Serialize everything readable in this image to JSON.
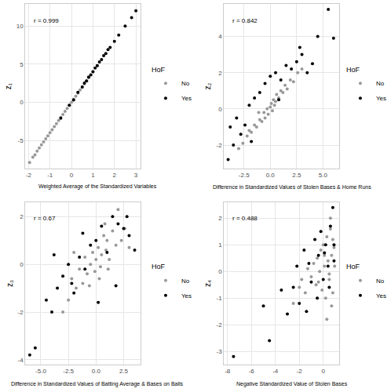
{
  "chart_data": [
    {
      "type": "scatter",
      "annotation": "r = 0.999",
      "x_label": "Weighted Average of the Standardized Variables",
      "y_label": "z₁",
      "legend_title": "HoF",
      "legend": "right",
      "grid": true,
      "xlim": [
        -2.15,
        3.2
      ],
      "ylim": [
        -8.7,
        12.9
      ],
      "xticks": [
        -2,
        -1,
        0,
        1,
        2,
        3
      ],
      "yticks": [
        -5,
        0,
        5,
        10
      ],
      "series": [
        {
          "name": "No",
          "color": "#999999",
          "marker": "circle",
          "x": [
            -1.95,
            -1.8,
            -1.7,
            -1.6,
            -1.5,
            -1.4,
            -1.3,
            -1.2,
            -1.1,
            -1.0,
            -0.9,
            -0.8,
            -0.7,
            -0.6,
            -0.5,
            -0.4,
            -0.3,
            -0.2,
            -0.1,
            0.0,
            0.1,
            0.2,
            0.3,
            0.4,
            0.5,
            0.6,
            0.7,
            0.8,
            1.0,
            1.2
          ],
          "values": [
            -7.9,
            -7.2,
            -6.9,
            -6.4,
            -6.0,
            -5.6,
            -5.2,
            -4.8,
            -4.4,
            -4.0,
            -3.6,
            -3.2,
            -2.8,
            -2.4,
            -2.0,
            -1.6,
            -1.2,
            -0.8,
            -0.4,
            0.0,
            0.4,
            0.8,
            1.2,
            1.6,
            2.0,
            2.4,
            2.8,
            3.2,
            4.0,
            4.8
          ]
        },
        {
          "name": "Yes",
          "color": "#000000",
          "marker": "circle",
          "x": [
            -0.5,
            -0.1,
            0.1,
            0.3,
            0.5,
            0.6,
            0.7,
            0.8,
            0.9,
            1.0,
            1.1,
            1.2,
            1.3,
            1.4,
            1.5,
            1.6,
            1.7,
            1.8,
            2.0,
            2.2,
            2.5,
            2.8,
            3.0
          ],
          "values": [
            -2.1,
            -0.4,
            0.3,
            1.3,
            2.0,
            2.5,
            2.8,
            3.3,
            3.6,
            4.0,
            4.5,
            4.8,
            5.3,
            5.6,
            6.1,
            6.4,
            6.9,
            7.2,
            8.0,
            8.8,
            10.0,
            11.1,
            12.0
          ]
        }
      ]
    },
    {
      "type": "scatter",
      "annotation": "r = 0.842",
      "x_label": "Difference in Standardized Values of Stolen Bases & Home Runs",
      "y_label": "z₂",
      "legend_title": "HoF",
      "legend": "right",
      "grid": true,
      "xlim": [
        -4.4,
        6.5
      ],
      "ylim": [
        -3.3,
        5.8
      ],
      "xticks": [
        -2.5,
        {
          "value": 0,
          "label": "0.0"
        },
        2.5,
        {
          "value": 5,
          "label": "5.0"
        }
      ],
      "yticks": [
        -2,
        0,
        2,
        4
      ],
      "series": [
        {
          "name": "No",
          "color": "#999999",
          "marker": "circle",
          "x": [
            -3.0,
            -2.6,
            -2.2,
            -2.0,
            -1.8,
            -1.5,
            -1.3,
            -1.0,
            -0.8,
            -0.6,
            -0.5,
            -0.3,
            -0.2,
            0.0,
            0.1,
            0.2,
            0.3,
            0.5,
            0.6,
            0.8,
            1.0,
            1.2,
            1.4,
            1.6,
            1.9,
            2.2,
            2.6,
            3.0,
            -1.1,
            0.4
          ],
          "values": [
            -2.2,
            -1.9,
            -1.5,
            -1.2,
            -1.3,
            -0.9,
            -1.0,
            -0.6,
            -0.7,
            -0.2,
            -0.5,
            0.0,
            -0.3,
            0.1,
            0.3,
            -0.1,
            0.5,
            0.4,
            0.8,
            0.6,
            1.0,
            0.9,
            1.3,
            1.1,
            1.6,
            1.5,
            2.0,
            2.2,
            -0.2,
            0.2
          ]
        },
        {
          "name": "Yes",
          "color": "#000000",
          "marker": "circle",
          "x": [
            -4.0,
            -3.5,
            -3.2,
            -2.8,
            -2.4,
            -2.0,
            -1.5,
            -1.0,
            -0.5,
            0.0,
            0.5,
            1.0,
            1.5,
            2.0,
            2.5,
            3.0,
            3.5,
            4.0,
            4.5,
            5.5,
            6.0,
            -3.8,
            -1.8,
            0.8,
            2.8
          ],
          "values": [
            -2.8,
            -2.0,
            -0.5,
            -1.4,
            -0.9,
            0.2,
            0.6,
            0.9,
            1.4,
            1.8,
            2.0,
            1.6,
            2.4,
            2.2,
            2.6,
            3.0,
            2.0,
            2.5,
            4.0,
            5.5,
            3.9,
            -1.0,
            -1.8,
            0.5,
            3.4
          ]
        }
      ]
    },
    {
      "type": "scatter",
      "annotation": "r = 0.67",
      "x_label": "Difference in Standardized Values of Batting Average & Bases on Balls",
      "y_label": "z₃",
      "legend_title": "HoF",
      "legend": "right",
      "grid": true,
      "xlim": [
        -6.4,
        4.0
      ],
      "ylim": [
        -4.2,
        2.6
      ],
      "xticks": [
        {
          "value": -5,
          "label": "-5.0"
        },
        -2.5,
        {
          "value": 0,
          "label": "0.0"
        },
        2.5
      ],
      "yticks": [
        -4,
        -2,
        0,
        2
      ],
      "series": [
        {
          "name": "No",
          "color": "#999999",
          "marker": "circle",
          "x": [
            -3.0,
            -2.5,
            -2.2,
            -1.8,
            -1.5,
            -1.2,
            -1.0,
            -0.8,
            -0.5,
            -0.3,
            -0.1,
            0.0,
            0.2,
            0.4,
            0.5,
            0.7,
            0.9,
            1.0,
            1.2,
            1.5,
            1.8,
            2.0,
            2.3,
            2.6,
            3.0,
            -0.6,
            0.3,
            1.1,
            -2.0,
            0.8
          ],
          "values": [
            -2.0,
            -1.5,
            -0.6,
            -1.0,
            -0.2,
            -0.8,
            0.3,
            -0.4,
            0.0,
            0.5,
            -0.3,
            0.2,
            0.7,
            -0.1,
            0.4,
            1.2,
            0.6,
            1.0,
            0.2,
            1.4,
            0.8,
            2.3,
            1.0,
            1.5,
            0.7,
            -0.9,
            -0.6,
            -0.2,
            0.5,
            1.7
          ]
        },
        {
          "name": "Yes",
          "color": "#000000",
          "marker": "circle",
          "x": [
            -6.0,
            -5.5,
            -4.5,
            -4.0,
            -3.5,
            -3.0,
            -2.5,
            -2.0,
            -1.5,
            -1.0,
            -0.5,
            0.0,
            0.5,
            1.0,
            1.5,
            2.0,
            2.5,
            3.0,
            3.5,
            -3.8,
            -2.2,
            0.2,
            1.8,
            2.8,
            -1.2
          ],
          "values": [
            -3.8,
            -3.5,
            -1.5,
            -2.0,
            -1.0,
            -0.5,
            0.0,
            -1.2,
            0.3,
            -0.2,
            0.8,
            1.0,
            1.6,
            0.5,
            2.0,
            1.7,
            1.5,
            1.2,
            0.6,
            0.4,
            -0.8,
            -1.6,
            -0.9,
            2.0,
            1.3
          ]
        }
      ]
    },
    {
      "type": "scatter",
      "annotation": "r = 0.488",
      "x_label": "Negative Standardized Value of Stolen Bases",
      "y_label": "z₄",
      "legend_title": "HoF",
      "legend": "right",
      "grid": true,
      "xlim": [
        -8.3,
        1.3
      ],
      "ylim": [
        -3.5,
        2.6
      ],
      "xticks": [
        -8,
        -6,
        -4,
        -2,
        0
      ],
      "yticks": [
        -3,
        -2,
        -1,
        0,
        1,
        2
      ],
      "series": [
        {
          "name": "No",
          "color": "#999999",
          "marker": "circle",
          "x": [
            -2.5,
            -2.0,
            -1.8,
            -1.5,
            -1.3,
            -1.0,
            -0.8,
            -0.6,
            -0.5,
            -0.3,
            -0.2,
            -0.1,
            0.0,
            0.1,
            0.2,
            0.3,
            0.4,
            0.5,
            0.6,
            0.7,
            0.8,
            0.9,
            0.95,
            0.3,
            0.6,
            0.8,
            0.5,
            0.1,
            -0.4,
            0.7
          ],
          "values": [
            -1.2,
            -0.6,
            -0.3,
            -0.8,
            0.1,
            -0.2,
            0.3,
            -0.5,
            0.5,
            0.0,
            0.8,
            -0.7,
            1.0,
            0.2,
            -1.0,
            1.3,
            0.4,
            -0.3,
            1.6,
            0.6,
            -0.8,
            0.9,
            0.2,
            -1.8,
            2.0,
            1.2,
            -0.1,
            0.6,
            -0.4,
            -1.3
          ]
        },
        {
          "name": "Yes",
          "color": "#000000",
          "marker": "circle",
          "x": [
            -7.5,
            -5.0,
            -4.5,
            -3.5,
            -3.0,
            -2.5,
            -2.2,
            -2.0,
            -1.6,
            -1.2,
            -1.0,
            -0.7,
            -0.4,
            -0.2,
            0.0,
            0.2,
            0.4,
            0.6,
            0.8,
            0.9,
            0.9,
            0.5,
            -0.5,
            0.1,
            -1.4
          ],
          "values": [
            -3.2,
            -1.3,
            -2.6,
            -0.7,
            -1.6,
            -0.6,
            0.2,
            -1.2,
            0.8,
            0.3,
            -0.4,
            1.2,
            0.6,
            1.5,
            -0.3,
            1.0,
            0.2,
            1.7,
            2.4,
            0.4,
            1.0,
            -0.6,
            -1.0,
            0.7,
            -1.5
          ]
        }
      ]
    }
  ]
}
